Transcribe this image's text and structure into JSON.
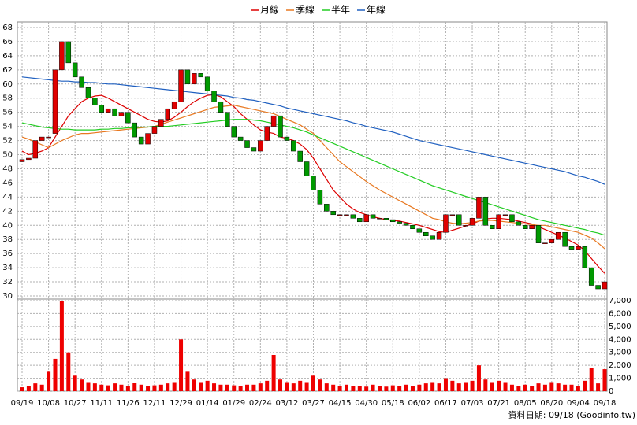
{
  "chart_data": {
    "type": "candlestick",
    "categories": [
      "09/19",
      null,
      null,
      null,
      "10/08",
      null,
      null,
      null,
      "10/27",
      null,
      null,
      null,
      "11/11",
      null,
      null,
      null,
      "11/26",
      null,
      null,
      null,
      "12/11",
      null,
      null,
      null,
      "12/29",
      null,
      null,
      null,
      "01/14",
      null,
      null,
      null,
      "01/29",
      null,
      null,
      null,
      "02/24",
      null,
      null,
      null,
      "03/12",
      null,
      null,
      null,
      "03/27",
      null,
      null,
      null,
      "04/15",
      null,
      null,
      null,
      "04/30",
      null,
      null,
      null,
      "05/18",
      null,
      null,
      null,
      "06/02",
      null,
      null,
      null,
      "06/17",
      null,
      null,
      null,
      "07/03",
      null,
      null,
      null,
      "07/21",
      null,
      null,
      null,
      "08/05",
      null,
      null,
      null,
      "08/20",
      null,
      null,
      null,
      "09/04",
      null,
      null,
      null,
      "09/18"
    ],
    "open": [
      49,
      49.3,
      49.5,
      52,
      52.5,
      53,
      62,
      66,
      63,
      61,
      59.5,
      58,
      57,
      56,
      56.5,
      55.5,
      56,
      54.5,
      52.5,
      51.5,
      53,
      54,
      55,
      56.5,
      57.5,
      62,
      60,
      61.5,
      61,
      59,
      57.5,
      56,
      54,
      52.5,
      52,
      51,
      50.5,
      52,
      54,
      55.5,
      52.5,
      52,
      50.5,
      49,
      47,
      45,
      43,
      42,
      41.5,
      41.5,
      41.5,
      41,
      40.5,
      41.5,
      41,
      41,
      40.8,
      40.5,
      40.3,
      40,
      39.5,
      39,
      38.5,
      38,
      39,
      41.5,
      41.5,
      40,
      40,
      41,
      44,
      40,
      39.5,
      41.5,
      41.5,
      40.5,
      40,
      39.5,
      40,
      37.5,
      37.5,
      38,
      39,
      37,
      36.5,
      37,
      34,
      31.5,
      31
    ],
    "close": [
      49.3,
      49.5,
      52,
      52.5,
      52.5,
      62,
      66,
      63,
      61,
      59.5,
      58,
      57,
      56,
      56.5,
      55.5,
      56,
      54.5,
      52.5,
      51.5,
      53,
      54,
      55,
      56.5,
      57.5,
      62,
      60,
      61.5,
      61,
      59,
      57.5,
      56,
      54,
      52.5,
      52,
      51,
      50.5,
      52,
      54,
      55.5,
      52.5,
      52,
      50.5,
      49,
      47,
      45,
      43,
      42,
      41.5,
      41.5,
      41.5,
      41,
      40.5,
      41.5,
      41,
      41,
      40.8,
      40.5,
      40.3,
      40,
      39.5,
      39,
      38.5,
      38,
      39,
      41.5,
      41.5,
      40,
      40,
      41,
      44,
      40,
      39.5,
      41.5,
      41.5,
      40.5,
      40,
      39.5,
      40,
      37.5,
      37.5,
      38,
      39,
      37,
      36.5,
      37,
      34,
      31.5,
      31,
      32
    ],
    "up_color": "#e00000",
    "down_color": "#009900",
    "series": [
      {
        "name": "月線",
        "color": "#dd0000",
        "values": [
          50.5,
          50,
          50.2,
          50.5,
          51,
          52.5,
          54,
          55.5,
          56.5,
          57.5,
          58,
          58.3,
          58.4,
          58,
          57.5,
          57,
          56.5,
          56,
          55.5,
          55,
          54.7,
          54.6,
          54.8,
          55.3,
          56,
          56.8,
          57.5,
          58,
          58.4,
          58.5,
          58.2,
          57.5,
          56.8,
          55.8,
          55,
          54.2,
          53.5,
          53.2,
          53,
          52.5,
          52.3,
          52,
          51.5,
          50.7,
          49.5,
          48,
          46.5,
          45,
          44,
          43,
          42.3,
          41.8,
          41.5,
          41.2,
          41,
          40.8,
          40.7,
          40.6,
          40.4,
          40.2,
          40,
          39.7,
          39.4,
          39.1,
          39,
          39.3,
          39.6,
          39.9,
          40.2,
          40.6,
          40.9,
          41,
          41,
          40.9,
          40.8,
          40.6,
          40.4,
          40.2,
          39.8,
          39.4,
          39,
          38.6,
          38.2,
          37.7,
          37.2,
          36.4,
          35.3,
          34.2,
          33.2
        ]
      },
      {
        "name": "季線",
        "color": "#e87820",
        "values": [
          52.5,
          52.2,
          51.8,
          51.4,
          51,
          51.5,
          52,
          52.4,
          52.8,
          53,
          53,
          53.1,
          53.2,
          53.3,
          53.4,
          53.5,
          53.6,
          53.7,
          53.8,
          53.9,
          54,
          54.3,
          54.6,
          54.9,
          55.2,
          55.5,
          55.8,
          56.1,
          56.4,
          56.7,
          56.8,
          56.9,
          57,
          56.8,
          56.6,
          56.4,
          56.2,
          56,
          55.8,
          55.4,
          55,
          54.6,
          54.2,
          53.6,
          53,
          52,
          51,
          50,
          49,
          48.3,
          47.6,
          46.9,
          46.2,
          45.6,
          45,
          44.5,
          44,
          43.5,
          43,
          42.5,
          42,
          41.5,
          41,
          40.8,
          40.5,
          40.3,
          40.2,
          40.3,
          40.4,
          40.6,
          40.7,
          40.7,
          40.6,
          40.5,
          40.4,
          40.3,
          40.2,
          40.1,
          40,
          40,
          39.8,
          39.6,
          39.4,
          39.2,
          39,
          38.6,
          38.2,
          37.5,
          36.7
        ]
      },
      {
        "name": "半年",
        "color": "#22cc22",
        "values": [
          54.5,
          54.3,
          54.1,
          53.9,
          53.8,
          53.7,
          53.6,
          53.6,
          53.5,
          53.5,
          53.5,
          53.5,
          53.6,
          53.6,
          53.7,
          53.7,
          53.8,
          53.8,
          53.9,
          53.9,
          54,
          54,
          54,
          54.1,
          54.2,
          54.3,
          54.4,
          54.5,
          54.6,
          54.7,
          54.8,
          54.9,
          55,
          55,
          55,
          54.9,
          54.8,
          54.6,
          54.4,
          54.2,
          54,
          53.8,
          53.5,
          53.2,
          52.8,
          52.4,
          52,
          51.6,
          51.2,
          50.8,
          50.4,
          50,
          49.6,
          49.2,
          48.8,
          48.4,
          48,
          47.6,
          47.2,
          46.8,
          46.4,
          46,
          45.6,
          45.3,
          45,
          44.7,
          44.4,
          44.1,
          43.8,
          43.5,
          43.2,
          42.9,
          42.6,
          42.3,
          42,
          41.7,
          41.4,
          41.1,
          40.8,
          40.6,
          40.4,
          40.2,
          40,
          39.8,
          39.6,
          39.4,
          39.1,
          38.9,
          38.6
        ]
      },
      {
        "name": "年線",
        "color": "#2060c0",
        "values": [
          61,
          60.9,
          60.8,
          60.7,
          60.6,
          60.5,
          60.4,
          60.4,
          60.3,
          60.3,
          60.2,
          60.2,
          60.1,
          60,
          60,
          59.9,
          59.8,
          59.7,
          59.6,
          59.5,
          59.4,
          59.3,
          59.2,
          59.1,
          59,
          58.9,
          58.8,
          58.7,
          58.6,
          58.5,
          58.4,
          58.3,
          58.1,
          58,
          57.8,
          57.7,
          57.5,
          57.3,
          57.1,
          56.9,
          56.6,
          56.4,
          56.2,
          56,
          55.8,
          55.6,
          55.4,
          55.2,
          55,
          54.8,
          54.5,
          54.3,
          54,
          53.8,
          53.6,
          53.4,
          53.2,
          52.9,
          52.6,
          52.3,
          52,
          51.8,
          51.6,
          51.4,
          51.2,
          51,
          50.8,
          50.6,
          50.4,
          50.2,
          50,
          49.8,
          49.6,
          49.4,
          49.2,
          49,
          48.8,
          48.6,
          48.4,
          48.2,
          48,
          47.8,
          47.6,
          47.3,
          47,
          46.8,
          46.5,
          46.2,
          45.8
        ]
      }
    ],
    "ylim": [
      30,
      68
    ],
    "yticks": [
      30,
      32,
      34,
      36,
      38,
      40,
      42,
      44,
      46,
      48,
      50,
      52,
      54,
      56,
      58,
      60,
      62,
      64,
      66,
      68
    ],
    "volume": {
      "color": "#ee0000",
      "values": [
        300,
        400,
        600,
        500,
        1500,
        2500,
        7000,
        3000,
        1200,
        900,
        700,
        600,
        500,
        450,
        600,
        500,
        400,
        650,
        500,
        400,
        450,
        500,
        600,
        700,
        4000,
        1500,
        900,
        700,
        800,
        600,
        500,
        500,
        450,
        400,
        500,
        500,
        600,
        800,
        2800,
        900,
        700,
        600,
        800,
        700,
        1200,
        900,
        600,
        500,
        400,
        500,
        400,
        400,
        350,
        500,
        400,
        350,
        450,
        400,
        500,
        400,
        500,
        600,
        700,
        600,
        1000,
        800,
        600,
        700,
        800,
        2000,
        900,
        700,
        800,
        700,
        500,
        400,
        500,
        400,
        600,
        500,
        700,
        600,
        500,
        500,
        400,
        800,
        1800,
        600,
        1700
      ],
      "ylim": [
        0,
        7000
      ],
      "yticks": [
        0,
        {
          "value": 1000,
          "label": "1,000"
        },
        {
          "value": 2000,
          "label": "2,000"
        },
        {
          "value": 3000,
          "label": "3,000"
        },
        {
          "value": 4000,
          "label": "4,000"
        },
        {
          "value": 5000,
          "label": "5,000"
        },
        {
          "value": 6000,
          "label": "6,000"
        },
        {
          "value": 7000,
          "label": "7,000"
        }
      ]
    },
    "grid": true,
    "legend": "top",
    "annotation": "資料日期: 09/18 (Goodinfo.tw)"
  }
}
